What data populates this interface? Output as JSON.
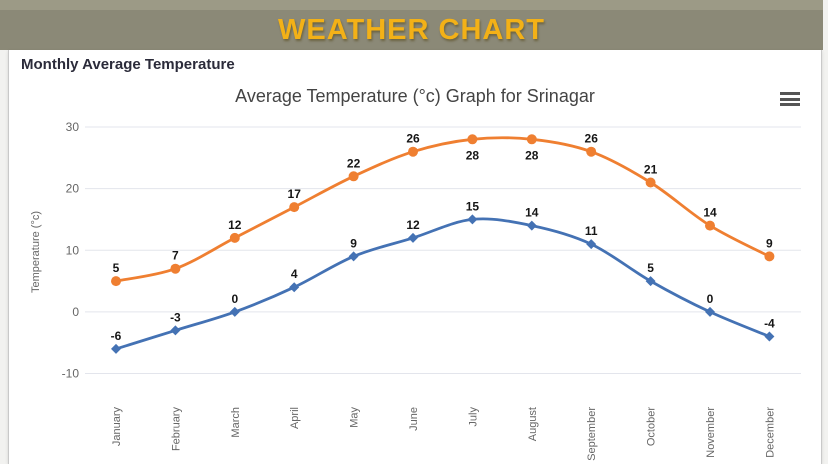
{
  "header": {
    "title": "WEATHER CHART"
  },
  "section": {
    "heading": "Monthly Average Temperature"
  },
  "chart": {
    "menu_icon": "hamburger-menu-icon"
  },
  "colors": {
    "top_strip": "#9c9a86",
    "header_band": "#8b8977",
    "header_title": "#f3b117",
    "grid": "#e3e5ec",
    "axis_text": "#666666",
    "data_label": "#161616",
    "series_max": "#ef7f31",
    "series_min": "#4472b4"
  },
  "chart_data": {
    "type": "line",
    "title": "Average Temperature (°c) Graph for Srinagar",
    "categories": [
      "January",
      "February",
      "March",
      "April",
      "May",
      "June",
      "July",
      "August",
      "September",
      "October",
      "November",
      "December"
    ],
    "series": [
      {
        "name": "series-1",
        "color": "#ef7f31",
        "marker": "circle",
        "values": [
          5,
          7,
          12,
          17,
          22,
          26,
          28,
          28,
          26,
          21,
          14,
          9
        ],
        "label_below_indices": [
          6,
          7
        ]
      },
      {
        "name": "series-2",
        "color": "#4472b4",
        "marker": "diamond",
        "values": [
          -6,
          -3,
          0,
          4,
          9,
          12,
          15,
          14,
          11,
          5,
          0,
          -4
        ],
        "label_below_indices": []
      }
    ],
    "xlabel": "",
    "ylabel": "Temperature (°c)",
    "yticks": [
      30,
      20,
      10,
      0,
      -10
    ],
    "ylim": [
      -10,
      30
    ],
    "grid": true,
    "legend": "none",
    "data_labels": true,
    "x_tick_rotation": -90
  }
}
